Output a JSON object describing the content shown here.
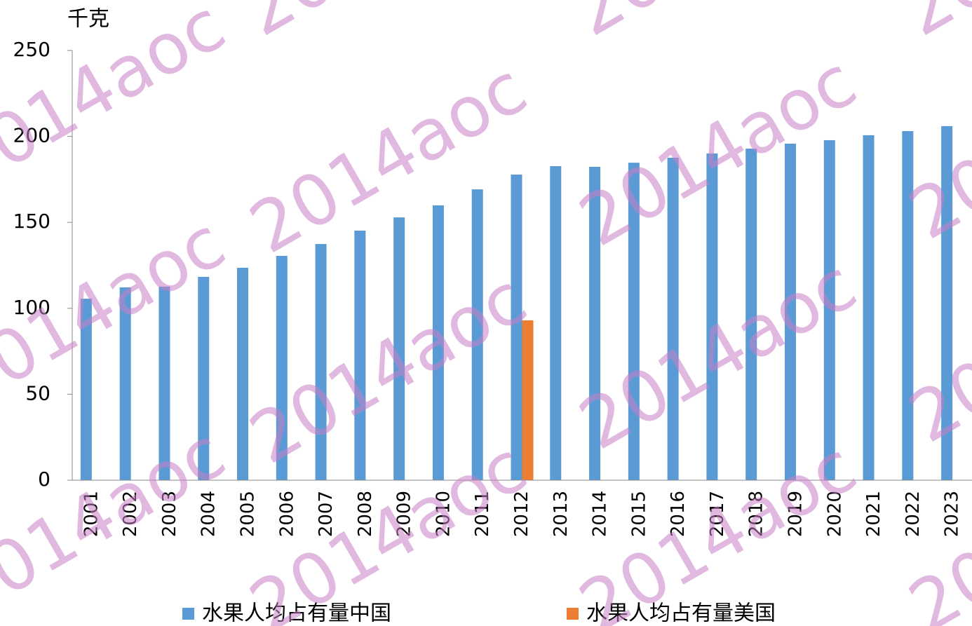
{
  "chart_data": {
    "type": "bar",
    "y_unit": "千克",
    "categories": [
      "2001",
      "2002",
      "2003",
      "2004",
      "2005",
      "2006",
      "2007",
      "2008",
      "2009",
      "2010",
      "2011",
      "2012",
      "2013",
      "2014",
      "2015",
      "2016",
      "2017",
      "2018",
      "2019",
      "2020",
      "2021",
      "2022",
      "2023"
    ],
    "series": [
      {
        "name": "水果人均占有量中国",
        "color": "#5b9bd5",
        "values": [
          105.6,
          112.2,
          112.6,
          118.3,
          123.6,
          130.5,
          137.4,
          145.2,
          152.9,
          159.9,
          169.2,
          177.8,
          182.7,
          182.3,
          184.7,
          187.6,
          190.1,
          192.9,
          195.8,
          197.8,
          200.7,
          203.1,
          206.0
        ]
      },
      {
        "name": "水果人均占有量美国",
        "color": "#ed7d31",
        "values": [
          null,
          null,
          null,
          null,
          null,
          null,
          null,
          null,
          null,
          null,
          null,
          93.0,
          null,
          null,
          null,
          null,
          null,
          null,
          null,
          null,
          null,
          null,
          null
        ]
      }
    ],
    "ylim": [
      0,
      250
    ],
    "yticks": [
      0,
      50,
      100,
      150,
      200,
      250
    ],
    "grid": false,
    "legend": "bottom",
    "watermark": "2014aoc"
  }
}
